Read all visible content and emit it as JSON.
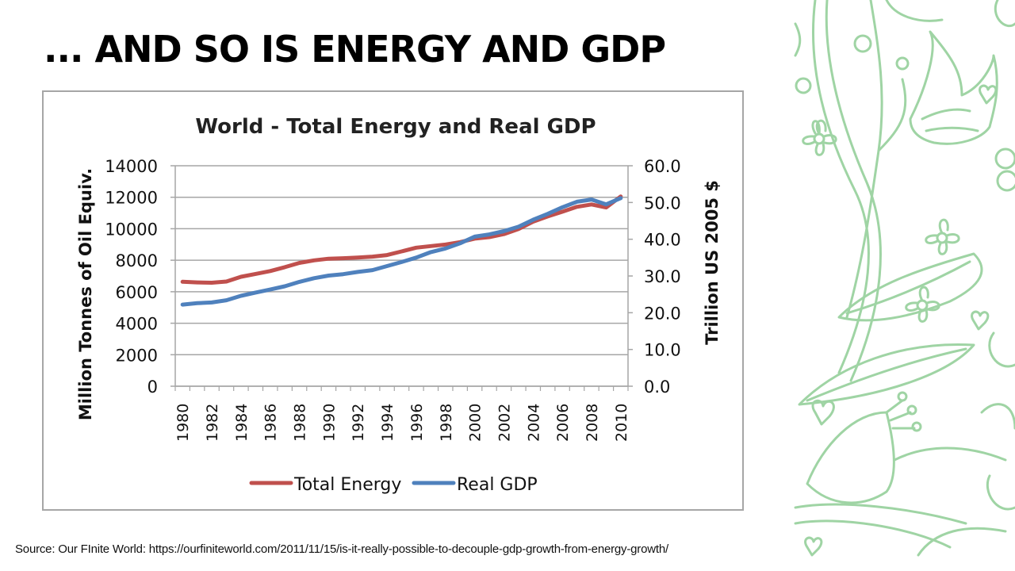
{
  "slide": {
    "title": "... AND SO IS ENERGY AND GDP",
    "source": "Source: Our FInite World: https://ourfiniteworld.com/2011/11/15/is-it-really-possible-to-decouple-gdp-growth-from-energy-growth/",
    "decoration": "floral-line-art-pattern",
    "decoration_color": "#9fd4a4"
  },
  "chart_data": {
    "type": "line",
    "title": "World - Total Energy and Real GDP",
    "xlabel": "",
    "ylabel": "Million Tonnes of Oil Equiv.",
    "y2label": "Trillion US 2005 $",
    "ylim": [
      0,
      14000
    ],
    "y2lim": [
      0,
      60
    ],
    "yticks": [
      "0",
      "2000",
      "4000",
      "6000",
      "8000",
      "10000",
      "12000",
      "14000"
    ],
    "y2ticks": [
      "0.0",
      "10.0",
      "20.0",
      "30.0",
      "40.0",
      "50.0",
      "60.0"
    ],
    "xtick_labels": [
      "1980",
      "1982",
      "1984",
      "1986",
      "1988",
      "1990",
      "1992",
      "1994",
      "1996",
      "1998",
      "2000",
      "2002",
      "2004",
      "2006",
      "2008",
      "2010"
    ],
    "grid": true,
    "legend_position": "bottom",
    "x": [
      1980,
      1981,
      1982,
      1983,
      1984,
      1985,
      1986,
      1987,
      1988,
      1989,
      1990,
      1991,
      1992,
      1993,
      1994,
      1995,
      1996,
      1997,
      1998,
      1999,
      2000,
      2001,
      2002,
      2003,
      2004,
      2005,
      2006,
      2007,
      2008,
      2009,
      2010
    ],
    "series": [
      {
        "name": "Total Energy",
        "axis": "left",
        "color": "#c0504d",
        "values": [
          6630,
          6590,
          6570,
          6650,
          6950,
          7130,
          7310,
          7560,
          7830,
          7990,
          8100,
          8130,
          8170,
          8230,
          8330,
          8560,
          8800,
          8900,
          9000,
          9150,
          9370,
          9470,
          9660,
          9980,
          10450,
          10780,
          11080,
          11390,
          11540,
          11350,
          12050
        ]
      },
      {
        "name": "Real GDP",
        "axis": "right",
        "color": "#4f81bd",
        "values": [
          22.2,
          22.6,
          22.8,
          23.4,
          24.6,
          25.5,
          26.3,
          27.2,
          28.4,
          29.4,
          30.1,
          30.5,
          31.1,
          31.6,
          32.7,
          33.8,
          35.0,
          36.5,
          37.5,
          38.9,
          40.7,
          41.3,
          42.2,
          43.4,
          45.3,
          46.9,
          48.7,
          50.2,
          50.8,
          49.5,
          51.2
        ]
      }
    ]
  }
}
